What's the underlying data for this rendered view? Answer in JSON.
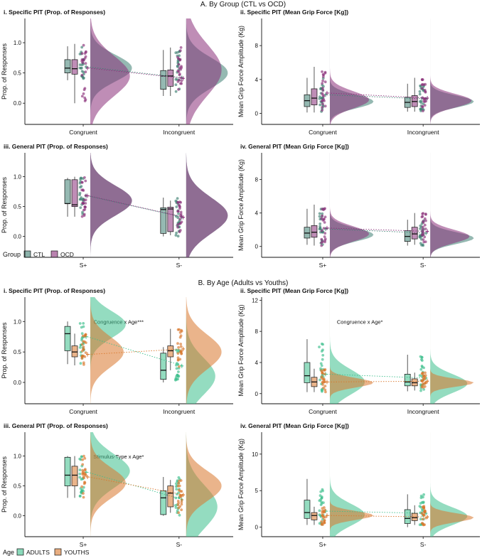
{
  "section_a": {
    "title": "A. By Group (CTL vs OCD)",
    "legend": {
      "label": "Group",
      "entries": [
        {
          "name": "CTL",
          "color": "#3e7f72"
        },
        {
          "name": "OCD",
          "color": "#8a2f7a"
        }
      ]
    }
  },
  "section_b": {
    "title": "B. By Age (Adults vs Youths)",
    "legend": {
      "label": "Age",
      "entries": [
        {
          "name": "ADULTS",
          "color": "#3cbf8c"
        },
        {
          "name": "YOUTHS",
          "color": "#d9772b"
        }
      ]
    }
  },
  "chart_data": [
    {
      "id": "a1",
      "type": "raincloud",
      "section": "A",
      "title": "i. Specific PIT (Prop. of Responses)",
      "ylabel": "Prop. of Responses",
      "ylim": [
        -0.35,
        1.4
      ],
      "yticks": [
        0.0,
        0.5,
        1.0
      ],
      "ytick_labels": [
        "0.0",
        "0.5",
        "1.0"
      ],
      "categories": [
        "Congruent",
        "Incongruent"
      ],
      "annotation": "",
      "series": [
        {
          "name": "CTL",
          "color": "#3e7f72",
          "box": [
            [
              0.38,
              0.5,
              0.58,
              0.72,
              0.94
            ],
            [
              0.12,
              0.23,
              0.45,
              0.54,
              0.88
            ]
          ],
          "means": [
            0.6,
            0.42
          ],
          "density": [
            [
              0.58,
              0.22,
              1.0
            ],
            [
              0.5,
              0.25,
              1.0
            ]
          ]
        },
        {
          "name": "OCD",
          "color": "#8a2f7a",
          "box": [
            [
              0.0,
              0.48,
              0.57,
              0.72,
              0.98
            ],
            [
              0.12,
              0.28,
              0.45,
              0.55,
              0.92
            ]
          ],
          "means": [
            0.58,
            0.41
          ],
          "density": [
            [
              0.45,
              0.33,
              0.95
            ],
            [
              0.55,
              0.42,
              0.85
            ]
          ]
        }
      ]
    },
    {
      "id": "a2",
      "type": "raincloud",
      "section": "A",
      "title": "ii. Specific PIT (Mean Grip Force [Kg])",
      "ylabel": "Mean Grip Force Amplitude (Kg)",
      "ylim": [
        -1.3,
        11.2
      ],
      "yticks": [
        0,
        4,
        8
      ],
      "ytick_labels": [
        "0",
        "4",
        "8"
      ],
      "categories": [
        "Congruent",
        "Incongruent"
      ],
      "annotation": "",
      "series": [
        {
          "name": "CTL",
          "color": "#3e7f72",
          "box": [
            [
              0.1,
              0.8,
              1.5,
              2.2,
              4.2
            ],
            [
              0.2,
              0.7,
              1.3,
              1.9,
              3.5
            ]
          ],
          "means": [
            2.2,
            1.7
          ],
          "density": [
            [
              1.4,
              0.8,
              1.0
            ],
            [
              1.4,
              0.7,
              1.0
            ]
          ]
        },
        {
          "name": "OCD",
          "color": "#8a2f7a",
          "box": [
            [
              0.1,
              1.0,
              1.8,
              2.9,
              5.5
            ],
            [
              0.2,
              0.8,
              1.4,
              2.1,
              4.2
            ]
          ],
          "means": [
            2.4,
            1.8
          ],
          "density": [
            [
              1.6,
              1.0,
              0.9
            ],
            [
              1.5,
              0.8,
              0.95
            ]
          ]
        }
      ]
    },
    {
      "id": "a3",
      "type": "raincloud",
      "section": "A",
      "title": "iii. General PIT (Prop. of Responses)",
      "ylabel": "Prop. of Responses",
      "ylim": [
        -0.35,
        1.4
      ],
      "yticks": [
        0.0,
        0.5,
        1.0
      ],
      "ytick_labels": [
        "0.0",
        "0.5",
        "1.0"
      ],
      "categories": [
        "S+",
        "S-"
      ],
      "annotation": "",
      "series": [
        {
          "name": "CTL",
          "color": "#3e7f72",
          "box": [
            [
              0.33,
              0.55,
              0.55,
              0.95,
              0.98
            ],
            [
              0.0,
              0.05,
              0.45,
              0.48,
              0.65
            ]
          ],
          "means": [
            0.68,
            0.32
          ],
          "density": [
            [
              0.6,
              0.25,
              1.0
            ],
            [
              0.35,
              0.3,
              1.0
            ]
          ]
        },
        {
          "name": "OCD",
          "color": "#8a2f7a",
          "box": [
            [
              0.33,
              0.5,
              0.53,
              0.95,
              1.0
            ],
            [
              0.02,
              0.08,
              0.46,
              0.49,
              0.6
            ]
          ],
          "means": [
            0.68,
            0.32
          ],
          "density": [
            [
              0.6,
              0.25,
              1.0
            ],
            [
              0.35,
              0.3,
              1.0
            ]
          ]
        }
      ]
    },
    {
      "id": "a4",
      "type": "raincloud",
      "section": "A",
      "title": "iv. General PIT (Mean Grip Force [Kg])",
      "ylabel": "Mean Grip Force Amplitude (Kg)",
      "ylim": [
        -1.3,
        11.2
      ],
      "yticks": [
        0,
        4,
        8
      ],
      "ytick_labels": [
        "0",
        "4",
        "8"
      ],
      "categories": [
        "S+",
        "S-"
      ],
      "annotation": "",
      "series": [
        {
          "name": "CTL",
          "color": "#3e7f72",
          "box": [
            [
              0.2,
              1.0,
              1.6,
              2.3,
              4.5
            ],
            [
              0.1,
              0.6,
              1.2,
              1.9,
              3.2
            ]
          ],
          "means": [
            2.1,
            1.6
          ],
          "density": [
            [
              1.4,
              0.8,
              1.0
            ],
            [
              1.0,
              0.7,
              1.0
            ]
          ]
        },
        {
          "name": "OCD",
          "color": "#8a2f7a",
          "box": [
            [
              0.1,
              1.1,
              1.7,
              2.5,
              5.0
            ],
            [
              0.2,
              0.9,
              1.5,
              2.3,
              4.0
            ]
          ],
          "means": [
            2.2,
            1.8
          ],
          "density": [
            [
              1.5,
              0.9,
              0.9
            ],
            [
              1.2,
              0.8,
              0.9
            ]
          ]
        }
      ]
    },
    {
      "id": "b1",
      "type": "raincloud",
      "section": "B",
      "title": "i. Specific PIT (Prop. of Responses)",
      "ylabel": "Prop. of Responses",
      "ylim": [
        -0.35,
        1.4
      ],
      "yticks": [
        0.0,
        0.5,
        1.0
      ],
      "ytick_labels": [
        "0.0",
        "0.5",
        "1.0"
      ],
      "categories": [
        "Congruent",
        "Incongruent"
      ],
      "annotation": "Congruence x Age***",
      "series": [
        {
          "name": "ADULTS",
          "color": "#3cbf8c",
          "box": [
            [
              0.3,
              0.52,
              0.8,
              0.92,
              1.0
            ],
            [
              0.0,
              0.05,
              0.2,
              0.48,
              0.58
            ]
          ],
          "means": [
            0.75,
            0.27
          ],
          "density": [
            [
              0.95,
              0.22,
              0.85
            ],
            [
              0.1,
              0.3,
              0.7
            ]
          ]
        },
        {
          "name": "YOUTHS",
          "color": "#d9772b",
          "box": [
            [
              0.28,
              0.42,
              0.5,
              0.6,
              0.8
            ],
            [
              0.2,
              0.42,
              0.52,
              0.6,
              0.88
            ]
          ],
          "means": [
            0.46,
            0.55
          ],
          "density": [
            [
              0.5,
              0.25,
              0.8
            ],
            [
              0.5,
              0.28,
              0.85
            ]
          ]
        }
      ]
    },
    {
      "id": "b2",
      "type": "raincloud",
      "section": "B",
      "title": "ii. Specific PIT (Mean Grip Force [Kg])",
      "ylabel": "Mean Grip Force Amplitude (Kg)",
      "ylim": [
        -1.3,
        12.4
      ],
      "yticks": [
        0,
        4,
        8,
        12
      ],
      "ytick_labels": [
        "0",
        "4",
        "8",
        "12"
      ],
      "categories": [
        "Congruent",
        "Incongruent"
      ],
      "annotation": "Congruence x Age*",
      "series": [
        {
          "name": "ADULTS",
          "color": "#3cbf8c",
          "box": [
            [
              0.2,
              1.4,
              2.3,
              4.0,
              7.0
            ],
            [
              0.3,
              1.0,
              1.5,
              2.5,
              5.0
            ]
          ],
          "means": [
            2.5,
            2.0
          ],
          "density": [
            [
              1.5,
              1.6,
              0.8
            ],
            [
              1.3,
              1.2,
              0.85
            ]
          ]
        },
        {
          "name": "YOUTHS",
          "color": "#d9772b",
          "box": [
            [
              0.2,
              0.9,
              1.5,
              2.1,
              3.2
            ],
            [
              0.4,
              1.0,
              1.4,
              1.9,
              2.7
            ]
          ],
          "means": [
            1.5,
            1.6
          ],
          "density": [
            [
              1.4,
              0.6,
              1.0
            ],
            [
              1.4,
              0.5,
              1.0
            ]
          ]
        }
      ]
    },
    {
      "id": "b3",
      "type": "raincloud",
      "section": "B",
      "title": "iii. General PIT (Prop. of Responses)",
      "ylabel": "Prop. of Responses",
      "ylim": [
        -0.35,
        1.4
      ],
      "yticks": [
        0.0,
        0.5,
        1.0
      ],
      "ytick_labels": [
        "0.0",
        "0.5",
        "1.0"
      ],
      "categories": [
        "S+",
        "S-"
      ],
      "annotation": "Stimulus-Type x Age*",
      "series": [
        {
          "name": "ADULTS",
          "color": "#3cbf8c",
          "box": [
            [
              0.3,
              0.5,
              0.68,
              0.98,
              1.0
            ],
            [
              0.0,
              0.02,
              0.3,
              0.42,
              0.65
            ]
          ],
          "means": [
            0.73,
            0.27
          ],
          "density": [
            [
              0.75,
              0.28,
              0.95
            ],
            [
              0.15,
              0.35,
              0.75
            ]
          ]
        },
        {
          "name": "YOUTHS",
          "color": "#d9772b",
          "box": [
            [
              0.3,
              0.5,
              0.68,
              0.83,
              1.0
            ],
            [
              0.05,
              0.15,
              0.38,
              0.5,
              0.6
            ]
          ],
          "means": [
            0.65,
            0.35
          ],
          "density": [
            [
              0.55,
              0.25,
              0.85
            ],
            [
              0.5,
              0.25,
              0.85
            ]
          ]
        }
      ]
    },
    {
      "id": "b4",
      "type": "raincloud",
      "section": "B",
      "title": "iv. General PIT (Mean Grip Force [Kg])",
      "ylabel": "Mean Grip Force Amplitude (Kg)",
      "ylim": [
        -1.3,
        13.0
      ],
      "yticks": [
        0,
        5,
        10
      ],
      "ytick_labels": [
        "0",
        "5",
        "10"
      ],
      "categories": [
        "S+",
        "S-"
      ],
      "annotation": "",
      "series": [
        {
          "name": "ADULTS",
          "color": "#3cbf8c",
          "box": [
            [
              0.3,
              1.2,
              2.0,
              3.7,
              6.6
            ],
            [
              0.0,
              0.5,
              1.2,
              2.4,
              4.5
            ]
          ],
          "means": [
            2.2,
            1.9
          ],
          "density": [
            [
              1.7,
              1.5,
              0.8
            ],
            [
              1.5,
              1.2,
              0.85
            ]
          ]
        },
        {
          "name": "YOUTHS",
          "color": "#d9772b",
          "box": [
            [
              0.3,
              1.0,
              1.6,
              2.0,
              2.8
            ],
            [
              0.3,
              0.9,
              1.3,
              1.9,
              3.0
            ]
          ],
          "means": [
            1.6,
            1.4
          ],
          "density": [
            [
              1.6,
              0.6,
              1.0
            ],
            [
              1.3,
              0.6,
              1.0
            ]
          ]
        }
      ]
    }
  ]
}
